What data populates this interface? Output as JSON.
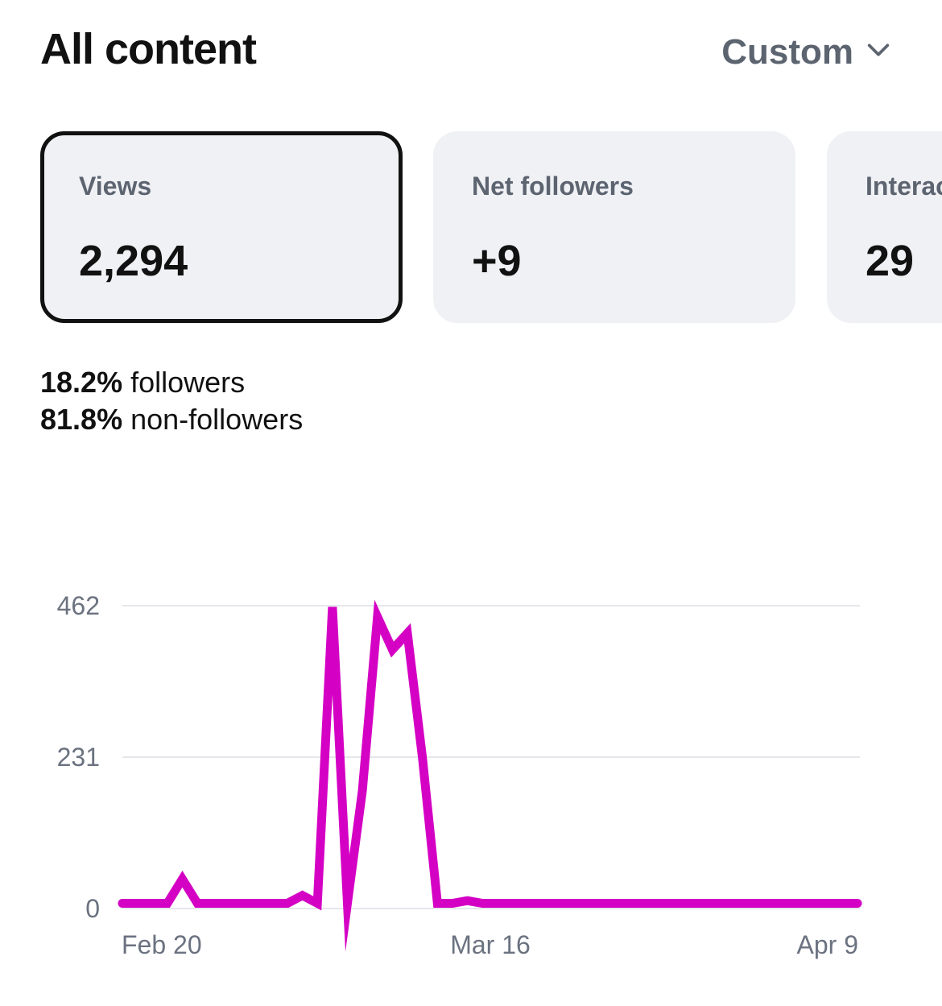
{
  "header": {
    "title": "All content",
    "range_label": "Custom"
  },
  "cards": [
    {
      "label": "Views",
      "value": "2,294",
      "selected": true
    },
    {
      "label": "Net followers",
      "value": "+9",
      "selected": false
    },
    {
      "label": "Interactions",
      "value": "29",
      "selected": false
    }
  ],
  "audience_split": [
    {
      "pct": "18.2%",
      "label": "followers"
    },
    {
      "pct": "81.8%",
      "label": "non-followers"
    }
  ],
  "colors": {
    "series": "#d400c4",
    "grid": "#e5e7eb",
    "card_bg": "#f0f1f5",
    "muted_text": "#5c6470"
  },
  "icons": {
    "range_dropdown": "chevron-down-icon"
  },
  "chart_data": {
    "type": "line",
    "title": "",
    "xlabel": "",
    "ylabel": "",
    "ylim": [
      0,
      462
    ],
    "yticks": [
      0,
      231,
      462
    ],
    "ytick_labels": [
      "0",
      "231",
      "462"
    ],
    "xtick_labels": [
      "Feb 20",
      "Mar 16",
      "Apr 9"
    ],
    "grid": true,
    "series": [
      {
        "values": [
          8,
          8,
          8,
          8,
          45,
          8,
          8,
          8,
          8,
          8,
          8,
          8,
          20,
          8,
          460,
          8,
          180,
          445,
          395,
          420,
          230,
          8,
          8,
          12,
          8,
          8,
          8,
          8,
          8,
          8,
          8,
          8,
          8,
          8,
          8,
          8,
          8,
          8,
          8,
          8,
          8,
          8,
          8,
          8,
          8,
          8,
          8,
          8,
          8,
          8
        ]
      }
    ]
  }
}
